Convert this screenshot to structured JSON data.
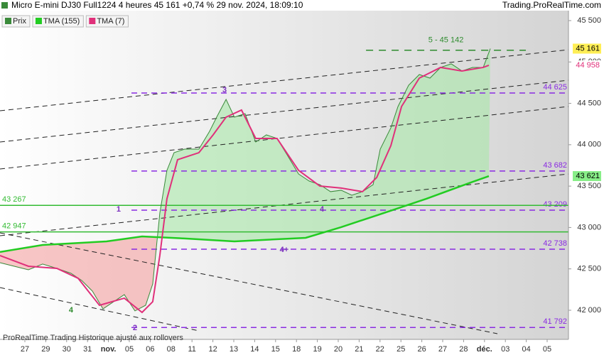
{
  "chart_data": {
    "type": "line",
    "title": "Micro E-mini DJ30 Full1224 4 heures 45 161 +0,74 % 29 nov. 2024, 18:09:10",
    "source": "Trading.ProRealTime.com",
    "footer": "ProRealTime Trading  Historique ajusté aux rollovers",
    "xlim": [
      -1.19,
      26.02
    ],
    "xticks": [
      {
        "value": 0,
        "label": "27"
      },
      {
        "value": 1,
        "label": "29"
      },
      {
        "value": 2,
        "label": "30"
      },
      {
        "value": 3,
        "label": "31"
      },
      {
        "value": 4,
        "label": "nov."
      },
      {
        "value": 5,
        "label": "05"
      },
      {
        "value": 6,
        "label": "06"
      },
      {
        "value": 7,
        "label": "08"
      },
      {
        "value": 8,
        "label": "11"
      },
      {
        "value": 9,
        "label": "12"
      },
      {
        "value": 10,
        "label": "13"
      },
      {
        "value": 11,
        "label": "14"
      },
      {
        "value": 12,
        "label": "15"
      },
      {
        "value": 13,
        "label": "18"
      },
      {
        "value": 14,
        "label": "19"
      },
      {
        "value": 15,
        "label": "20"
      },
      {
        "value": 16,
        "label": "21"
      },
      {
        "value": 17,
        "label": "22"
      },
      {
        "value": 18,
        "label": "25"
      },
      {
        "value": 19,
        "label": "26"
      },
      {
        "value": 20,
        "label": "27"
      },
      {
        "value": 21,
        "label": "28"
      },
      {
        "value": 22,
        "label": "déc."
      },
      {
        "value": 23,
        "label": "03"
      },
      {
        "value": 24,
        "label": "04"
      },
      {
        "value": 25,
        "label": "05"
      }
    ],
    "ylim": [
      41648,
      45620
    ],
    "yticks": [
      {
        "value": 45500,
        "label": "45 500"
      },
      {
        "value": 45000,
        "label": "45 000"
      },
      {
        "value": 44500,
        "label": "44 500"
      },
      {
        "value": 44000,
        "label": "44 000"
      },
      {
        "value": 43500,
        "label": "43 500"
      },
      {
        "value": 43000,
        "label": "43 000"
      },
      {
        "value": 42500,
        "label": "42 500"
      },
      {
        "value": 42000,
        "label": "42 000"
      }
    ],
    "grid": true,
    "series": [
      {
        "name": "Prix",
        "color": "#3a8a3a",
        "x": [
          -1.19,
          -0.51,
          0.17,
          0.85,
          1.53,
          2.21,
          2.72,
          3.23,
          3.74,
          4.25,
          4.76,
          5.27,
          5.78,
          6.12,
          6.46,
          6.8,
          7.14,
          7.65,
          8.33,
          8.84,
          9.18,
          9.63,
          10.03,
          10.54,
          11.05,
          11.56,
          12.07,
          12.59,
          13.1,
          13.61,
          14.12,
          14.63,
          15.14,
          15.65,
          16.16,
          16.67,
          17.01,
          17.52,
          17.86,
          18.37,
          18.88,
          19.39,
          19.9,
          20.41,
          20.92,
          21.43,
          21.94,
          22.28
        ],
        "values": [
          42575,
          42532,
          42489,
          42558,
          42506,
          42446,
          42360,
          42232,
          42017,
          42103,
          42189,
          41992,
          42060,
          42318,
          43175,
          43690,
          43904,
          43947,
          43947,
          44162,
          44333,
          44548,
          44333,
          44376,
          44033,
          44119,
          44076,
          43862,
          43647,
          43561,
          43518,
          43433,
          43450,
          43390,
          43433,
          43518,
          43947,
          44205,
          44462,
          44719,
          44848,
          44805,
          44934,
          44977,
          44891,
          44934,
          44934,
          45161
        ]
      },
      {
        "name": "TMA (155)",
        "color": "#22cc22",
        "x": [
          -1.19,
          0.85,
          3.91,
          5.61,
          7.65,
          10.03,
          13.44,
          15.14,
          17.18,
          19.22,
          21.26,
          22.21
        ],
        "values": [
          42704,
          42789,
          42832,
          42892,
          42867,
          42832,
          42875,
          43004,
          43175,
          43347,
          43536,
          43621
        ]
      },
      {
        "name": "TMA (7)",
        "color": "#e0307a",
        "x": [
          -1.19,
          0.17,
          1.53,
          2.55,
          3.57,
          4.76,
          5.61,
          6.12,
          6.46,
          6.8,
          7.31,
          8.33,
          9.01,
          9.63,
          10.37,
          11.05,
          12.07,
          13.1,
          14.12,
          15.14,
          16.16,
          16.84,
          17.52,
          18.03,
          18.88,
          19.9,
          20.92,
          21.94,
          22.21
        ],
        "values": [
          42661,
          42532,
          42506,
          42386,
          42060,
          42146,
          41974,
          42103,
          42661,
          43347,
          43819,
          43904,
          44119,
          44333,
          44419,
          44076,
          44076,
          43690,
          43501,
          43476,
          43433,
          43604,
          43990,
          44462,
          44805,
          44934,
          44891,
          44934,
          44960
        ]
      }
    ],
    "levels": [
      {
        "value": 44625,
        "label": "44 625",
        "color": "#8a2be2",
        "dashed": true,
        "label_side": "right"
      },
      {
        "value": 43682,
        "label": "43 682",
        "color": "#8a2be2",
        "dashed": true,
        "label_side": "right"
      },
      {
        "value": 43209,
        "label": "43 209",
        "color": "#8a2be2",
        "dashed": true,
        "label_side": "right"
      },
      {
        "value": 42738,
        "label": "42 738",
        "color": "#8a2be2",
        "dashed": true,
        "label_side": "right"
      },
      {
        "value": 41792,
        "label": "41 792",
        "color": "#8a2be2",
        "dashed": true,
        "label_side": "right"
      },
      {
        "value": 43267,
        "label": "43 267",
        "color": "#33bb33",
        "dashed": false,
        "label_side": "left"
      },
      {
        "value": 42947,
        "label": "42 947",
        "color": "#33bb33",
        "dashed": false,
        "label_side": "left"
      }
    ],
    "target": {
      "label": "5 - 45 142",
      "value": 45142,
      "x": [
        16.33,
        23.98
      ],
      "color": "#2e8b2e"
    },
    "price_markers": [
      {
        "value": 45161,
        "label": "45 161",
        "bg": "#ffee55",
        "color": "#000000"
      },
      {
        "value": 44958,
        "label": "44 958",
        "bg": "#ffffff",
        "color": "#e0307a"
      },
      {
        "value": 43621,
        "label": "43 621",
        "bg": "#88ee88",
        "color": "#000000"
      }
    ],
    "annotations": [
      {
        "text": "3",
        "x": 9.56,
        "y": 44660,
        "color": "#7b2fbe"
      },
      {
        "text": "1",
        "x": 4.49,
        "y": 43218,
        "color": "#7b2fbe"
      },
      {
        "text": "4",
        "x": 14.22,
        "y": 43218,
        "color": "#7b2fbe"
      },
      {
        "text": "4+",
        "x": 12.41,
        "y": 42729,
        "color": "#7b2fbe"
      },
      {
        "text": "4",
        "x": 2.21,
        "y": 42000,
        "color": "#2e8b2e"
      },
      {
        "text": "2",
        "x": 5.27,
        "y": 41786,
        "color": "#7b2fbe"
      }
    ]
  }
}
